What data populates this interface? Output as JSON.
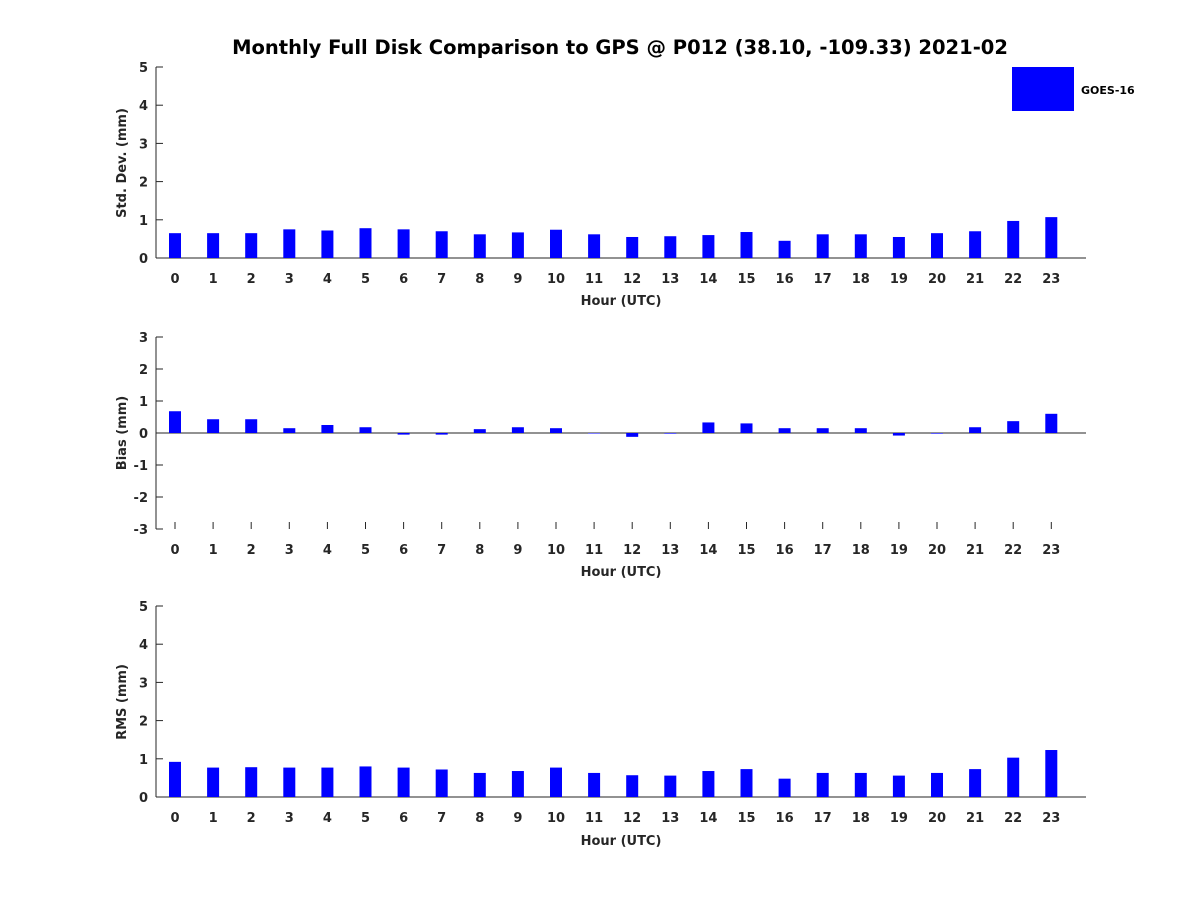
{
  "title": "Monthly Full Disk Comparison to GPS @ P012 (38.10, -109.33) 2021-02",
  "legend": {
    "label": "GOES-16",
    "color": "#0000ff",
    "placement": "top-right"
  },
  "chart_data": [
    {
      "type": "bar",
      "ylabel": "Std. Dev. (mm)",
      "xlabel": "Hour (UTC)",
      "ylim": [
        0,
        5
      ],
      "yticks": [
        0,
        1,
        2,
        3,
        4,
        5
      ],
      "categories": [
        "0",
        "1",
        "2",
        "3",
        "4",
        "5",
        "6",
        "7",
        "8",
        "9",
        "10",
        "11",
        "12",
        "13",
        "14",
        "15",
        "16",
        "17",
        "18",
        "19",
        "20",
        "21",
        "22",
        "23"
      ],
      "series": [
        {
          "name": "GOES-16",
          "values": [
            0.65,
            0.65,
            0.65,
            0.75,
            0.72,
            0.78,
            0.75,
            0.7,
            0.62,
            0.67,
            0.74,
            0.62,
            0.55,
            0.57,
            0.6,
            0.68,
            0.45,
            0.62,
            0.62,
            0.55,
            0.65,
            0.7,
            0.97,
            1.07
          ]
        }
      ],
      "grid": false
    },
    {
      "type": "bar",
      "ylabel": "Bias (mm)",
      "xlabel": "Hour (UTC)",
      "ylim": [
        -3,
        3
      ],
      "yticks": [
        -3,
        -2,
        -1,
        0,
        1,
        2,
        3
      ],
      "categories": [
        "0",
        "1",
        "2",
        "3",
        "4",
        "5",
        "6",
        "7",
        "8",
        "9",
        "10",
        "11",
        "12",
        "13",
        "14",
        "15",
        "16",
        "17",
        "18",
        "19",
        "20",
        "21",
        "22",
        "23"
      ],
      "series": [
        {
          "name": "GOES-16",
          "values": [
            0.68,
            0.43,
            0.43,
            0.15,
            0.25,
            0.18,
            -0.05,
            -0.05,
            0.12,
            0.18,
            0.15,
            0.0,
            -0.12,
            -0.02,
            0.33,
            0.3,
            0.15,
            0.15,
            0.15,
            -0.08,
            -0.02,
            0.18,
            0.37,
            0.6
          ]
        }
      ],
      "grid": false
    },
    {
      "type": "bar",
      "ylabel": "RMS (mm)",
      "xlabel": "Hour (UTC)",
      "ylim": [
        0,
        5
      ],
      "yticks": [
        0,
        1,
        2,
        3,
        4,
        5
      ],
      "categories": [
        "0",
        "1",
        "2",
        "3",
        "4",
        "5",
        "6",
        "7",
        "8",
        "9",
        "10",
        "11",
        "12",
        "13",
        "14",
        "15",
        "16",
        "17",
        "18",
        "19",
        "20",
        "21",
        "22",
        "23"
      ],
      "series": [
        {
          "name": "GOES-16",
          "values": [
            0.92,
            0.77,
            0.78,
            0.77,
            0.77,
            0.8,
            0.77,
            0.72,
            0.63,
            0.68,
            0.77,
            0.63,
            0.57,
            0.56,
            0.68,
            0.73,
            0.48,
            0.63,
            0.63,
            0.56,
            0.63,
            0.73,
            1.03,
            1.23
          ]
        }
      ],
      "grid": false
    }
  ]
}
